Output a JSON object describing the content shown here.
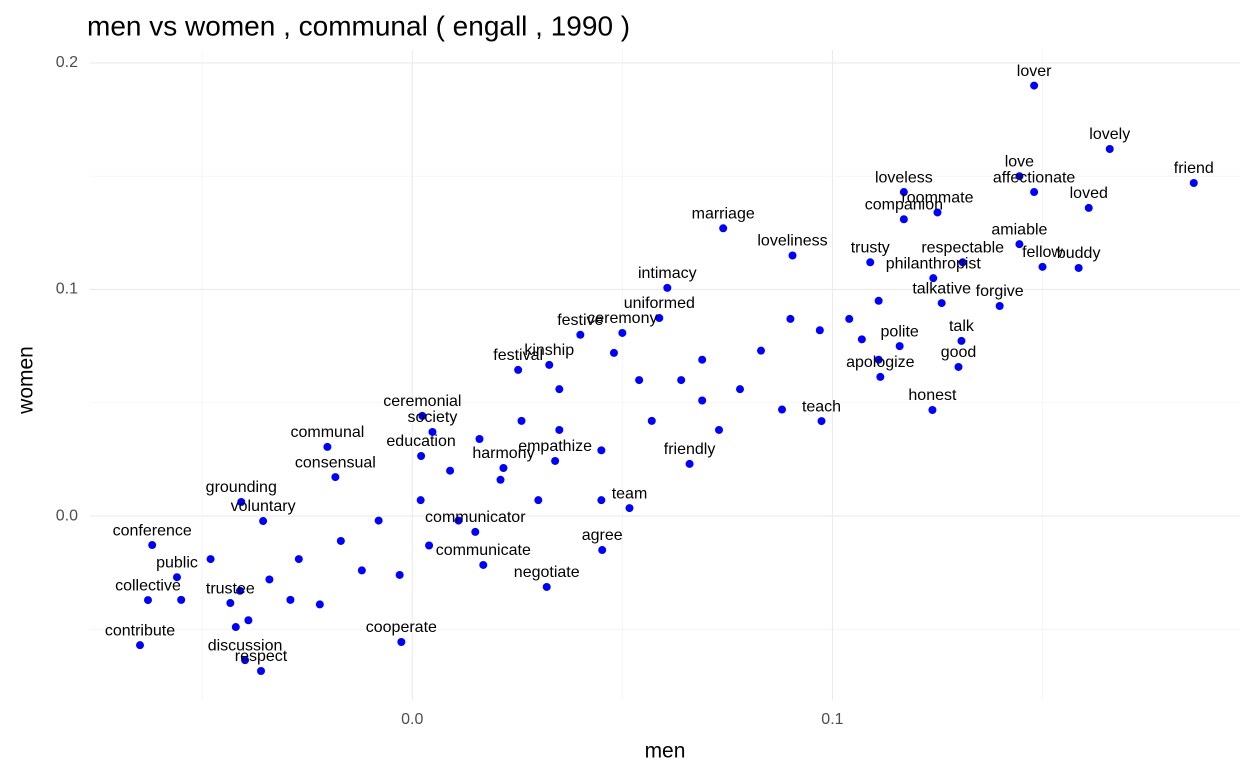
{
  "chart_data": {
    "type": "scatter",
    "title": "men vs women , communal ( engall , 1990 )",
    "x_label": "men",
    "y_label": "women",
    "color": "#0000ff",
    "grid": true,
    "xlim": [
      -0.0767,
      0.197
    ],
    "ylim": [
      -0.0812,
      0.2057
    ],
    "xticks": [
      {
        "value": 0,
        "label": "0.0"
      },
      0.1
    ],
    "yticks": [
      {
        "value": 0,
        "label": "0.0"
      },
      0.1,
      0.2
    ],
    "xminor": [
      -0.05,
      0.05,
      0.15
    ],
    "yminor": [
      -0.05,
      0.05,
      0.15
    ],
    "series": [
      {
        "name": null,
        "labels": [
          "lover",
          "lovely",
          "friend",
          "love",
          "affectionate",
          "loved",
          "loveless",
          "roommate",
          "companion",
          "marriage",
          "amiable",
          "fellow",
          "buddy",
          "respectable",
          "philanthropist",
          "trusty",
          "loveliness",
          "intimacy",
          "forgive",
          "talkative",
          "uniformed",
          "talk",
          "good",
          "honest",
          "teach",
          "festive",
          "kinship",
          "ceremonial",
          "communal",
          "consensual",
          "education",
          "society",
          "harmony",
          "empathize",
          "friendly",
          "grounding",
          "conference",
          "agree",
          "negotiate",
          "cooperate",
          "discussion",
          "respect",
          "public",
          "collective",
          "contribute",
          "trustee",
          "voluntary",
          "festival",
          "ceremony",
          "team",
          "communicate",
          "communicator",
          "apologize",
          "polite",
          null,
          null,
          null,
          null,
          null,
          null,
          null,
          null,
          null,
          null,
          null,
          null,
          null,
          null,
          null,
          null,
          null,
          null,
          null,
          null,
          null,
          null,
          null,
          null,
          null,
          null,
          null,
          null,
          null,
          null,
          null,
          null,
          null,
          null,
          null,
          null,
          null,
          null,
          null,
          null,
          null
        ],
        "x": [
          0.148,
          0.166,
          0.186,
          0.1445,
          0.148,
          0.161,
          0.117,
          0.125,
          0.117,
          0.074,
          0.1445,
          0.15,
          0.1586,
          0.131,
          0.124,
          0.109,
          0.0905,
          0.0607,
          0.1398,
          0.126,
          0.0588,
          0.1307,
          0.13,
          0.1238,
          0.0974,
          0.04,
          0.0326,
          0.0024,
          -0.0202,
          -0.0183,
          0.0021,
          0.0048,
          0.0217,
          0.034,
          0.066,
          -0.0407,
          -0.0619,
          0.0452,
          0.032,
          -0.0026,
          -0.0398,
          -0.036,
          -0.056,
          -0.0629,
          -0.0648,
          -0.0433,
          -0.0355,
          0.0252,
          0.05,
          0.0517,
          0.0169,
          0.015,
          0.1114,
          0.116,
          0.048,
          0.054,
          0.069,
          0.083,
          0.097,
          0.104,
          0.111,
          0.035,
          0.026,
          0.016,
          0.009,
          0.002,
          -0.008,
          -0.017,
          -0.027,
          -0.034,
          -0.041,
          -0.022,
          -0.029,
          -0.012,
          -0.003,
          0.069,
          0.078,
          0.088,
          0.035,
          0.045,
          0.057,
          0.111,
          0.107,
          0.09,
          0.021,
          0.03,
          0.011,
          0.004,
          -0.039,
          -0.042,
          -0.048,
          -0.055,
          0.045,
          0.064,
          0.073
        ],
        "y": [
          0.19,
          0.162,
          0.147,
          0.15,
          0.143,
          0.136,
          0.143,
          0.134,
          0.131,
          0.127,
          0.12,
          0.11,
          0.1095,
          0.112,
          0.105,
          0.112,
          0.115,
          0.1007,
          0.0927,
          0.094,
          0.0874,
          0.0773,
          0.0658,
          0.0468,
          0.0419,
          0.08,
          0.0667,
          0.0442,
          0.0305,
          0.0172,
          0.0265,
          0.0371,
          0.0212,
          0.0243,
          0.023,
          0.0062,
          -0.0128,
          -0.015,
          -0.0313,
          -0.0556,
          -0.0636,
          -0.0684,
          -0.027,
          -0.0371,
          -0.057,
          -0.0384,
          -0.0022,
          0.0645,
          0.0808,
          0.0035,
          -0.0216,
          -0.007,
          0.0614,
          0.075,
          0.072,
          0.06,
          0.069,
          0.073,
          0.082,
          0.087,
          0.095,
          0.056,
          0.042,
          0.034,
          0.02,
          0.007,
          -0.002,
          -0.011,
          -0.019,
          -0.028,
          -0.033,
          -0.039,
          -0.037,
          -0.024,
          -0.026,
          0.051,
          0.056,
          0.047,
          0.038,
          0.029,
          0.042,
          0.069,
          0.078,
          0.087,
          0.016,
          0.007,
          -0.002,
          -0.013,
          -0.046,
          -0.049,
          -0.019,
          -0.037,
          0.007,
          0.06,
          0.038
        ]
      }
    ]
  }
}
